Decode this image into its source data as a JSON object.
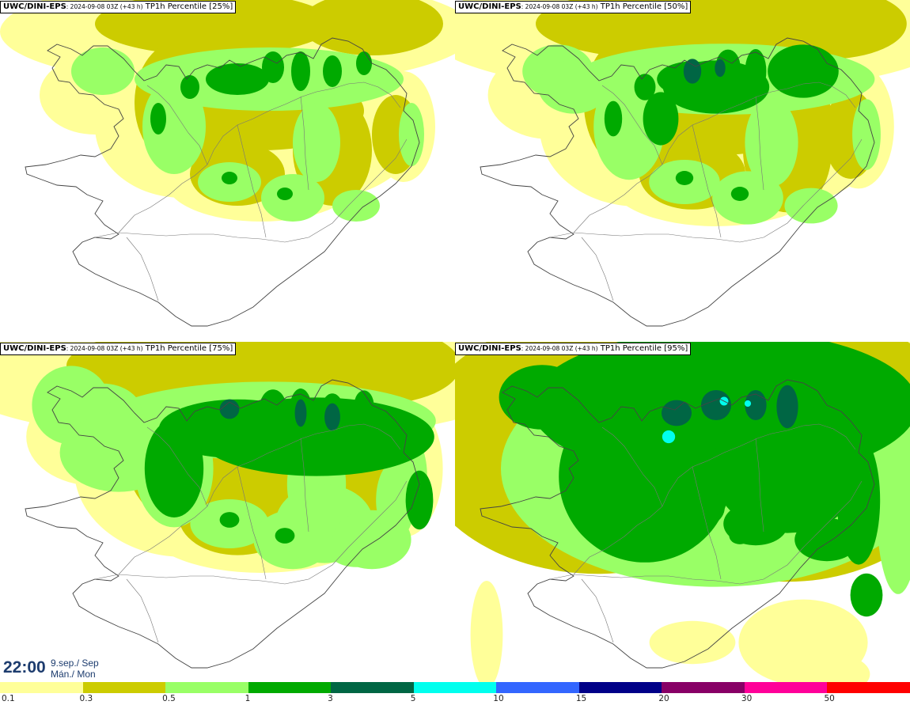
{
  "panels": [
    {
      "model": "UWC/DINI-EPS",
      "run": ": 2024-09-08 03Z (+43 h)",
      "field": " TP1h Percentile [25%]",
      "level": 0
    },
    {
      "model": "UWC/DINI-EPS",
      "run": ": 2024-09-08 03Z (+43 h)",
      "field": " TP1h Percentile [50%]",
      "level": 1
    },
    {
      "model": "UWC/DINI-EPS",
      "run": ": 2024-09-08 03Z (+43 h)",
      "field": " TP1h Percentile [75%]",
      "level": 2
    },
    {
      "model": "UWC/DINI-EPS",
      "run": ": 2024-09-08 03Z (+43 h)",
      "field": " TP1h Percentile [95%]",
      "level": 3
    }
  ],
  "valid_time": {
    "time": "22:00",
    "date_line1": "9.sep./ Sep",
    "date_line2": "Mán./ Mon"
  },
  "legend": {
    "labels": [
      "0.1",
      "0.3",
      "0.5",
      "1",
      "3",
      "5",
      "10",
      "15",
      "20",
      "30",
      "50"
    ],
    "colors": [
      "#ffff99",
      "#cccc00",
      "#99ff66",
      "#00aa00",
      "#006644",
      "#00ffee",
      "#3366ff",
      "#000088",
      "#880066",
      "#ff0099",
      "#ff0000"
    ]
  },
  "precip_colors": {
    "p01": "#ffff99",
    "p03": "#cccc00",
    "p05": "#99ff66",
    "p1": "#00aa00",
    "p3": "#006644",
    "p5": "#00ffee"
  }
}
